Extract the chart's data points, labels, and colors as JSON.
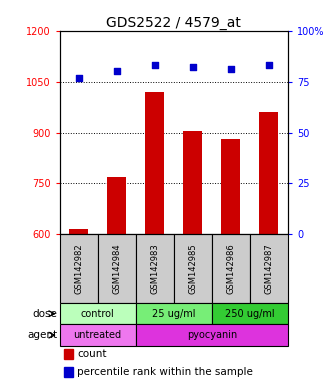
{
  "title": "GDS2522 / 4579_at",
  "samples": [
    "GSM142982",
    "GSM142984",
    "GSM142983",
    "GSM142985",
    "GSM142986",
    "GSM142987"
  ],
  "counts": [
    615,
    770,
    1020,
    905,
    880,
    960
  ],
  "percentiles": [
    77,
    80,
    83,
    82,
    81,
    83
  ],
  "ylim_left": [
    600,
    1200
  ],
  "ylim_right": [
    0,
    100
  ],
  "yticks_left": [
    600,
    750,
    900,
    1050,
    1200
  ],
  "yticks_right": [
    0,
    25,
    50,
    75,
    100
  ],
  "ytick_labels_right": [
    "0",
    "25",
    "50",
    "75",
    "100%"
  ],
  "bar_color": "#cc0000",
  "dot_color": "#0000cc",
  "bar_width": 0.5,
  "dose_groups": [
    {
      "label": "control",
      "span": [
        0,
        2
      ],
      "color": "#bbffbb"
    },
    {
      "label": "25 ug/ml",
      "span": [
        2,
        4
      ],
      "color": "#77ee77"
    },
    {
      "label": "250 ug/ml",
      "span": [
        4,
        6
      ],
      "color": "#33cc33"
    }
  ],
  "agent_groups": [
    {
      "label": "untreated",
      "span": [
        0,
        2
      ],
      "color": "#ee77ee"
    },
    {
      "label": "pyocyanin",
      "span": [
        2,
        6
      ],
      "color": "#dd33dd"
    }
  ],
  "sample_row_color": "#cccccc",
  "dose_label": "dose",
  "agent_label": "agent",
  "legend_count_label": "count",
  "legend_pct_label": "percentile rank within the sample"
}
